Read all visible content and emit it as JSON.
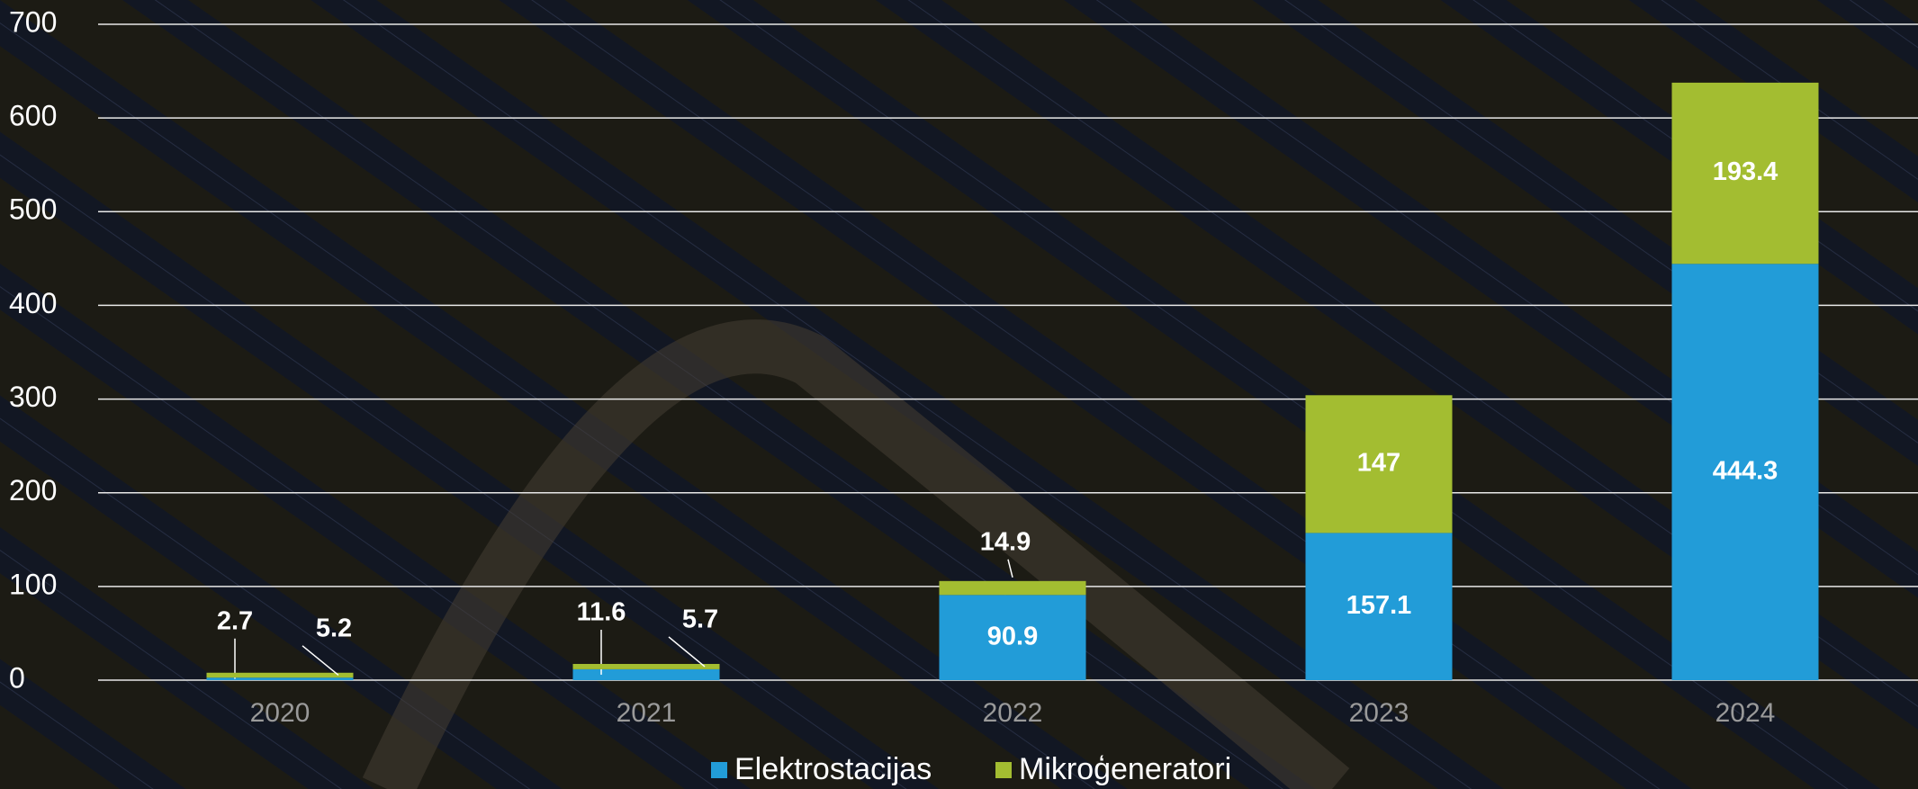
{
  "chart_data": {
    "type": "stacked_bar",
    "categories": [
      "2020",
      "2021",
      "2022",
      "2023",
      "2024"
    ],
    "series": [
      {
        "name": "Elektrostacijas",
        "color": "#229cd8",
        "values": [
          2.7,
          11.6,
          90.9,
          157.1,
          444.3
        ]
      },
      {
        "name": "Mikroģeneratori",
        "color": "#a3bd31",
        "values": [
          5.2,
          5.7,
          14.9,
          147,
          193.4
        ]
      }
    ],
    "ylim": [
      0,
      700
    ],
    "yticks": [
      0,
      100,
      200,
      300,
      400,
      500,
      600,
      700
    ],
    "grid": true,
    "legend": "bottom"
  }
}
